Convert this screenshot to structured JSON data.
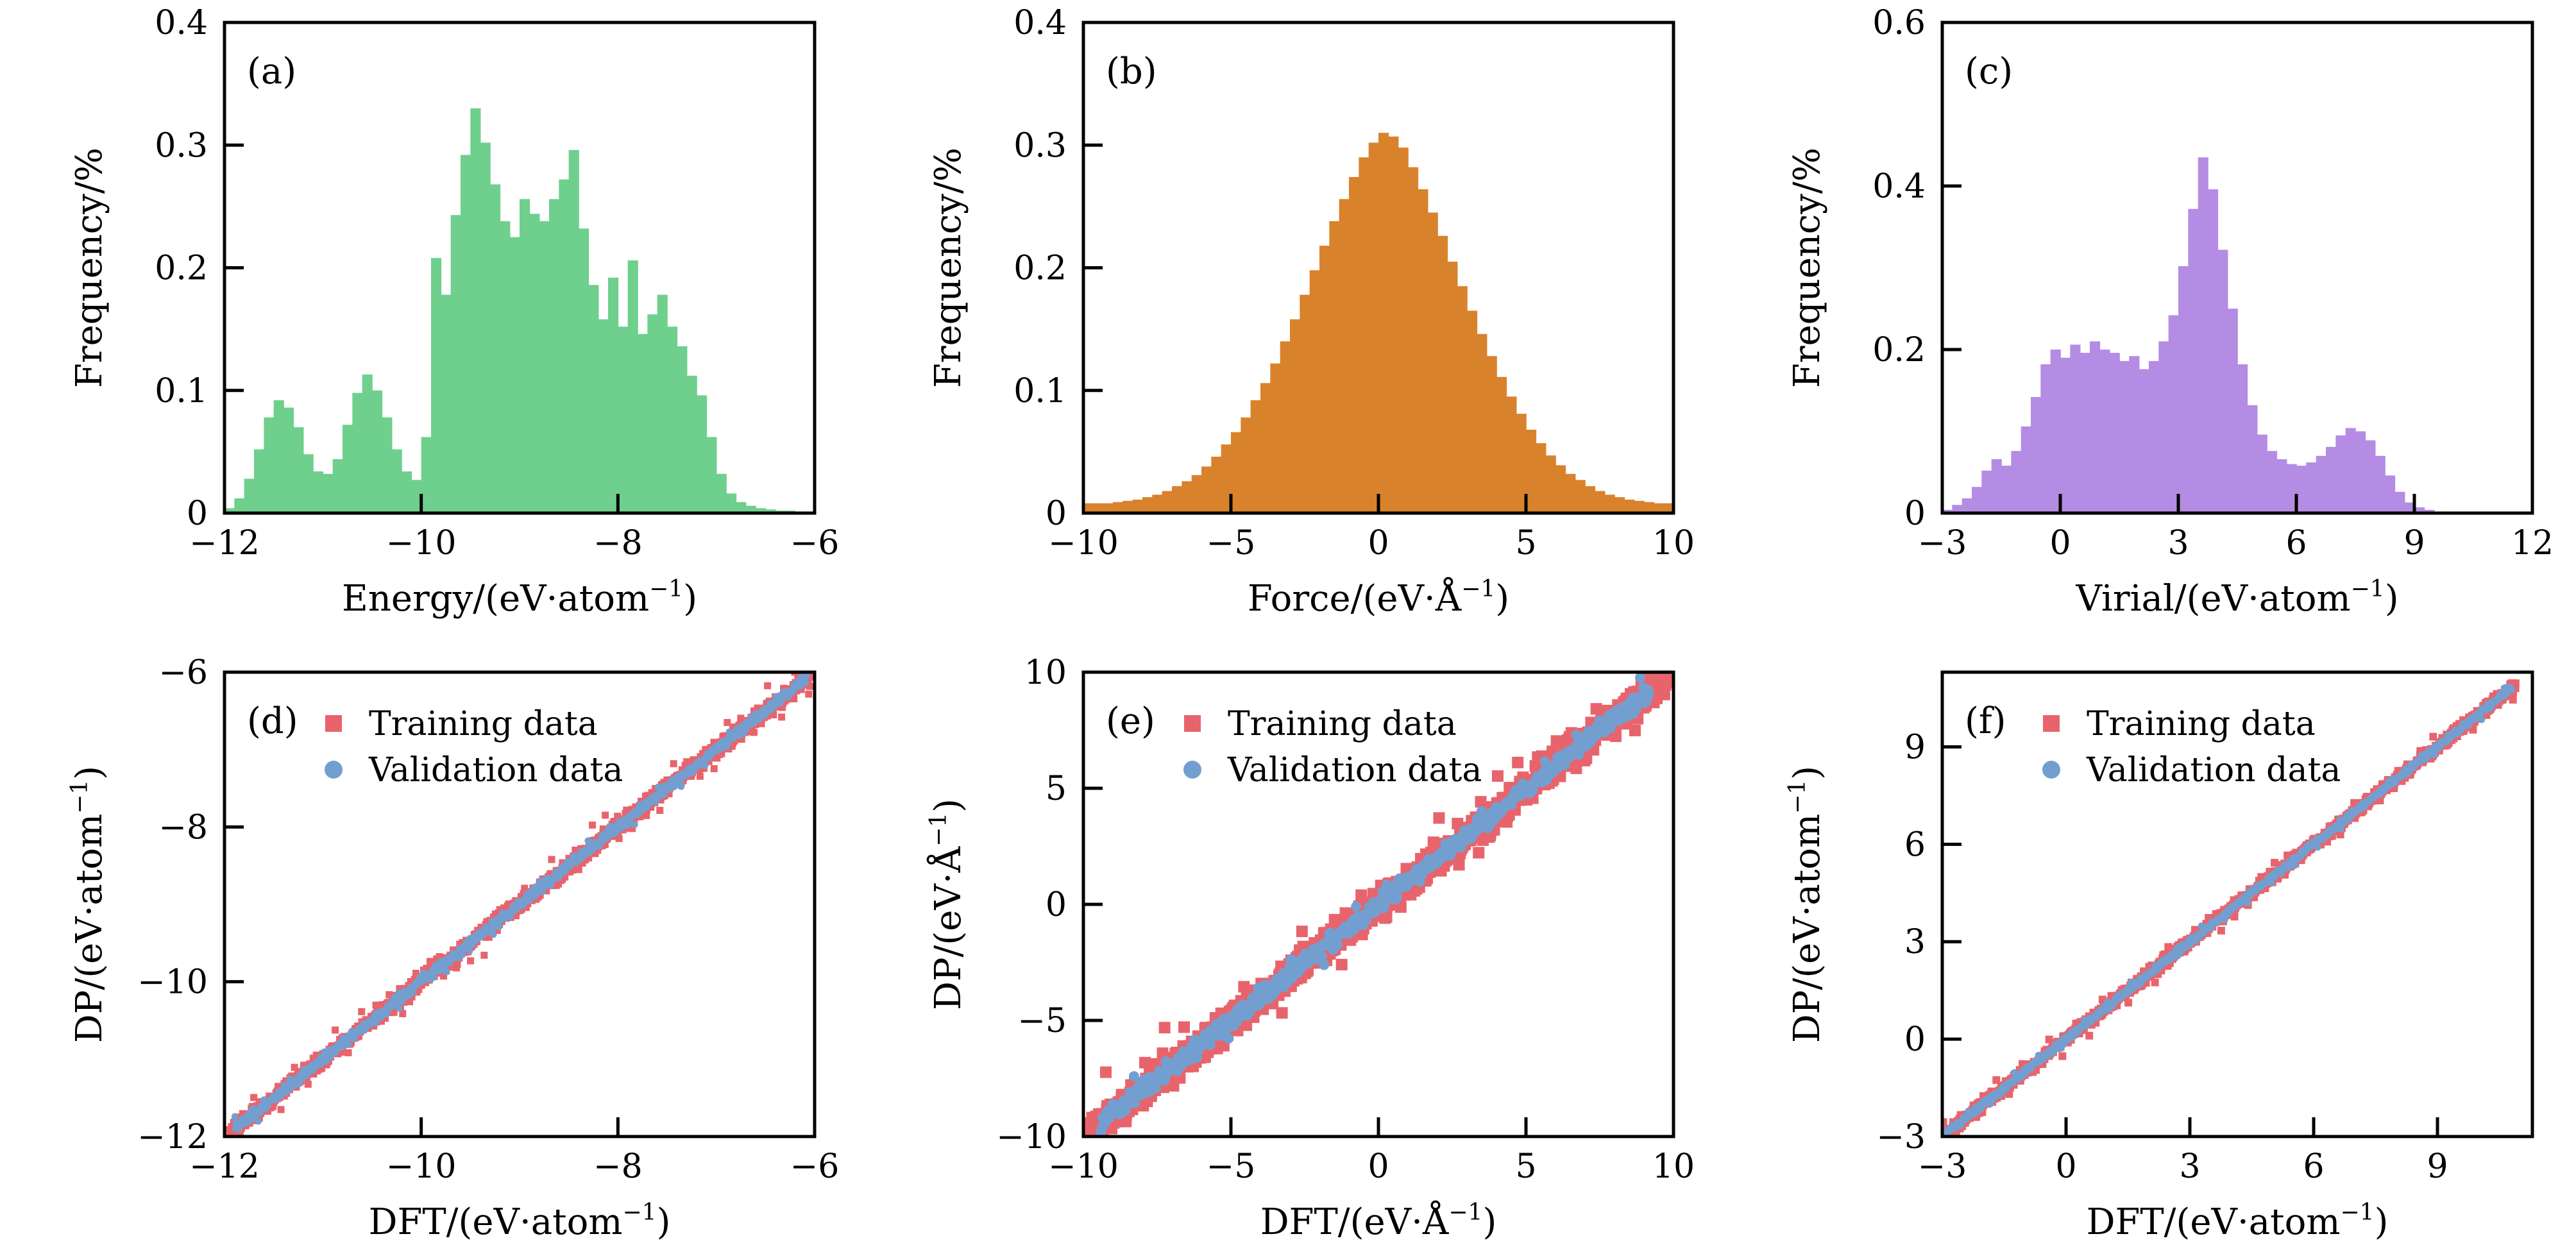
{
  "figure": {
    "background": "#ffffff",
    "axis_color": "#000000",
    "description": "Six-panel figure: top row histograms of Energy, Force, Virial; bottom row DP vs DFT parity scatter plots"
  },
  "legend_labels": {
    "training": "Training data",
    "validation": "Validation data"
  },
  "colors": {
    "energy_hist": "#6fcf8d",
    "force_hist": "#d9822c",
    "virial_hist": "#b48ce4",
    "training": "#e8646c",
    "validation": "#739fd0"
  },
  "chart_data": [
    {
      "id": "a",
      "type": "bar",
      "panel_label": "(a)",
      "xlabel": "Energy/(eV·atom⁻¹)",
      "ylabel": "Frequency/%",
      "xlim": [
        -12,
        -6
      ],
      "ylim": [
        0,
        0.4
      ],
      "xticks": [
        -12,
        -10,
        -8,
        -6
      ],
      "xtick_labels": [
        "−12",
        "−10",
        "−8",
        "−6"
      ],
      "yticks": [
        0,
        0.1,
        0.2,
        0.3,
        0.4
      ],
      "ytick_labels": [
        "0",
        "0.1",
        "0.2",
        "0.3",
        "0.4"
      ],
      "bar_color": "#6fcf8d",
      "bins": {
        "start": -12,
        "width": 0.1,
        "values": [
          0.004,
          0.012,
          0.028,
          0.052,
          0.078,
          0.092,
          0.086,
          0.07,
          0.048,
          0.034,
          0.032,
          0.044,
          0.072,
          0.098,
          0.113,
          0.1,
          0.078,
          0.052,
          0.034,
          0.027,
          0.062,
          0.208,
          0.178,
          0.243,
          0.292,
          0.33,
          0.302,
          0.268,
          0.238,
          0.225,
          0.256,
          0.244,
          0.238,
          0.256,
          0.272,
          0.296,
          0.232,
          0.186,
          0.158,
          0.192,
          0.152,
          0.206,
          0.146,
          0.162,
          0.178,
          0.152,
          0.136,
          0.112,
          0.096,
          0.062,
          0.032,
          0.016,
          0.009,
          0.006,
          0.004,
          0.003,
          0.002,
          0.002,
          0.001,
          0.001
        ]
      }
    },
    {
      "id": "b",
      "type": "bar",
      "panel_label": "(b)",
      "xlabel": "Force/(eV·Å⁻¹)",
      "ylabel": "Frequency/%",
      "xlim": [
        -10,
        10
      ],
      "ylim": [
        0,
        0.4
      ],
      "xticks": [
        -10,
        -5,
        0,
        5,
        10
      ],
      "xtick_labels": [
        "−10",
        "−5",
        "0",
        "5",
        "10"
      ],
      "yticks": [
        0,
        0.1,
        0.2,
        0.3,
        0.4
      ],
      "ytick_labels": [
        "0",
        "0.1",
        "0.2",
        "0.3",
        "0.4"
      ],
      "bar_color": "#d9822c",
      "bins": {
        "start": -10,
        "width": 0.33333,
        "values": [
          0.008,
          0.008,
          0.008,
          0.009,
          0.01,
          0.011,
          0.013,
          0.015,
          0.018,
          0.022,
          0.026,
          0.031,
          0.038,
          0.046,
          0.056,
          0.066,
          0.078,
          0.092,
          0.106,
          0.122,
          0.14,
          0.158,
          0.178,
          0.198,
          0.218,
          0.238,
          0.256,
          0.274,
          0.29,
          0.302,
          0.31,
          0.307,
          0.298,
          0.282,
          0.264,
          0.245,
          0.226,
          0.205,
          0.185,
          0.165,
          0.146,
          0.128,
          0.111,
          0.095,
          0.081,
          0.068,
          0.057,
          0.047,
          0.039,
          0.032,
          0.027,
          0.022,
          0.018,
          0.015,
          0.013,
          0.011,
          0.01,
          0.009,
          0.008,
          0.008
        ]
      }
    },
    {
      "id": "c",
      "type": "bar",
      "panel_label": "(c)",
      "xlabel": "Virial/(eV·atom⁻¹)",
      "ylabel": "Frequency/%",
      "xlim": [
        -3,
        12
      ],
      "ylim": [
        0,
        0.6
      ],
      "xticks": [
        -3,
        0,
        3,
        6,
        9,
        12
      ],
      "xtick_labels": [
        "−3",
        "0",
        "3",
        "6",
        "9",
        "12"
      ],
      "yticks": [
        0,
        0.2,
        0.4,
        0.6
      ],
      "ytick_labels": [
        "0",
        "0.2",
        "0.4",
        "0.6"
      ],
      "bar_color": "#b48ce4",
      "bins": {
        "start": -3,
        "width": 0.25,
        "values": [
          0.004,
          0.01,
          0.018,
          0.032,
          0.052,
          0.066,
          0.058,
          0.076,
          0.106,
          0.142,
          0.182,
          0.2,
          0.19,
          0.206,
          0.196,
          0.21,
          0.2,
          0.196,
          0.186,
          0.192,
          0.176,
          0.186,
          0.21,
          0.242,
          0.302,
          0.372,
          0.435,
          0.396,
          0.322,
          0.25,
          0.182,
          0.132,
          0.096,
          0.076,
          0.066,
          0.06,
          0.058,
          0.062,
          0.07,
          0.081,
          0.095,
          0.104,
          0.1,
          0.089,
          0.07,
          0.046,
          0.026,
          0.013,
          0.007,
          0.004,
          0.002,
          0.001,
          0,
          0,
          0,
          0,
          0,
          0,
          0,
          0
        ]
      }
    },
    {
      "id": "d",
      "type": "scatter",
      "panel_label": "(d)",
      "xlabel": "DFT/(eV·atom⁻¹)",
      "ylabel": "DP/(eV·atom⁻¹)",
      "xlim": [
        -12,
        -6
      ],
      "ylim": [
        -12,
        -6
      ],
      "xticks": [
        -12,
        -10,
        -8,
        -6
      ],
      "xtick_labels": [
        "−12",
        "−10",
        "−8",
        "−6"
      ],
      "yticks": [
        -12,
        -10,
        -8,
        -6
      ],
      "ytick_labels": [
        "−12",
        "−10",
        "−8",
        "−6"
      ],
      "identity_line": {
        "x0": -12,
        "y0": -12,
        "x1": -6,
        "y1": -6
      },
      "legend": [
        {
          "label": "Training data",
          "marker": "square",
          "color": "#e8646c"
        },
        {
          "label": "Validation data",
          "marker": "circle",
          "color": "#739fd0"
        }
      ],
      "series": [
        {
          "name": "Training data",
          "marker": "square",
          "color": "#e8646c",
          "x_range": [
            -11.98,
            -6.03
          ],
          "band_halfwidth": 0.1,
          "n_points": 1600,
          "marker_size": 11,
          "seed": 101
        },
        {
          "name": "Validation data",
          "marker": "circle",
          "color": "#739fd0",
          "x_range": [
            -11.9,
            -6.08
          ],
          "band_halfwidth": 0.055,
          "n_points": 900,
          "marker_size": 11,
          "seed": 102
        }
      ]
    },
    {
      "id": "e",
      "type": "scatter",
      "panel_label": "(e)",
      "xlabel": "DFT/(eV·Å⁻¹)",
      "ylabel": "DP/(eV·Å⁻¹)",
      "xlim": [
        -10,
        10
      ],
      "ylim": [
        -10,
        10
      ],
      "xticks": [
        -10,
        -5,
        0,
        5,
        10
      ],
      "xtick_labels": [
        "−10",
        "−5",
        "0",
        "5",
        "10"
      ],
      "yticks": [
        -10,
        -5,
        0,
        5,
        10
      ],
      "ytick_labels": [
        "−10",
        "−5",
        "0",
        "5",
        "10"
      ],
      "identity_line": {
        "x0": -10,
        "y0": -10,
        "x1": 10,
        "y1": 10
      },
      "legend": [
        {
          "label": "Training data",
          "marker": "square",
          "color": "#e8646c"
        },
        {
          "label": "Validation data",
          "marker": "circle",
          "color": "#739fd0"
        }
      ],
      "series": [
        {
          "name": "Training data",
          "marker": "square",
          "color": "#e8646c",
          "x_range": [
            -9.9,
            9.85
          ],
          "band_halfwidth": 0.62,
          "n_points": 1100,
          "marker_size": 18,
          "seed": 201
        },
        {
          "name": "Validation data",
          "marker": "circle",
          "color": "#739fd0",
          "x_range": [
            -9.4,
            9.2
          ],
          "band_halfwidth": 0.32,
          "n_points": 640,
          "marker_size": 16,
          "seed": 202
        }
      ]
    },
    {
      "id": "f",
      "type": "scatter",
      "panel_label": "(f)",
      "xlabel": "DFT/(eV·atom⁻¹)",
      "ylabel": "DP/(eV·atom⁻¹)",
      "xlim": [
        -3,
        11.3
      ],
      "ylim": [
        -3,
        11.3
      ],
      "xticks": [
        -3,
        0,
        3,
        6,
        9
      ],
      "xtick_labels": [
        "−3",
        "0",
        "3",
        "6",
        "9"
      ],
      "yticks": [
        -3,
        0,
        3,
        6,
        9
      ],
      "ytick_labels": [
        "−3",
        "0",
        "3",
        "6",
        "9"
      ],
      "identity_line": {
        "x0": -3,
        "y0": -3,
        "x1": 11.3,
        "y1": 11.3
      },
      "legend": [
        {
          "label": "Training data",
          "marker": "square",
          "color": "#e8646c"
        },
        {
          "label": "Validation data",
          "marker": "circle",
          "color": "#739fd0"
        }
      ],
      "series": [
        {
          "name": "Training data",
          "marker": "square",
          "color": "#e8646c",
          "x_range": [
            -2.98,
            10.9
          ],
          "band_halfwidth": 0.16,
          "n_points": 1600,
          "marker_size": 12,
          "seed": 301
        },
        {
          "name": "Validation data",
          "marker": "circle",
          "color": "#739fd0",
          "x_range": [
            -2.95,
            10.8
          ],
          "band_halfwidth": 0.085,
          "n_points": 900,
          "marker_size": 11,
          "seed": 302
        }
      ]
    }
  ]
}
